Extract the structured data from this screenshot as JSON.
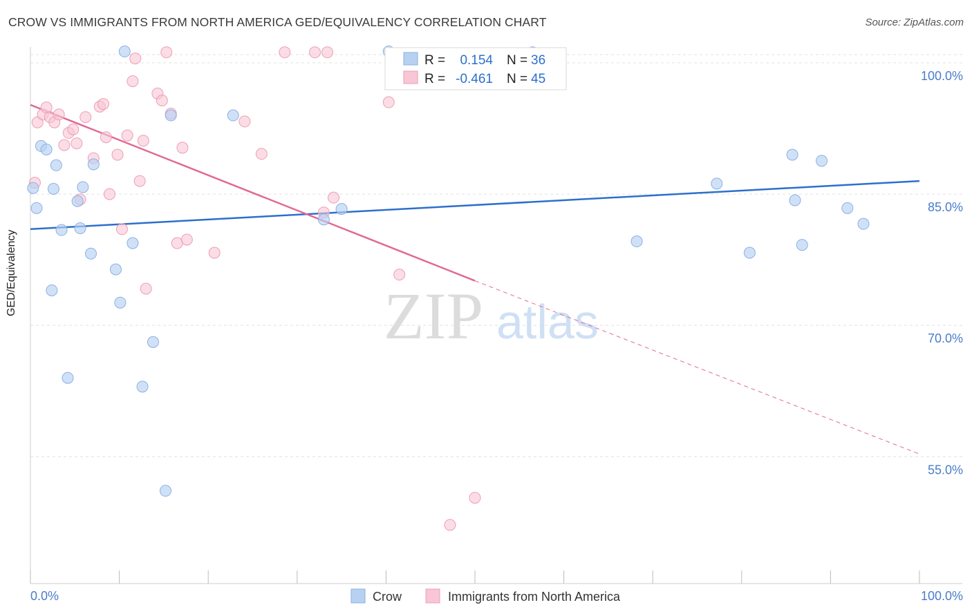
{
  "title": "CROW VS IMMIGRANTS FROM NORTH AMERICA GED/EQUIVALENCY CORRELATION CHART",
  "source": "Source: ZipAtlas.com",
  "watermark": {
    "zip": "ZIP",
    "atlas": "atlas"
  },
  "legend": {
    "r_label": "R =",
    "n_label": "N =",
    "crow": {
      "r": "0.154",
      "n": "36"
    },
    "imm": {
      "r": "-0.461",
      "n": "45"
    }
  },
  "colors": {
    "crow_fill": "#b7d1f2",
    "crow_stroke": "#8ab0e3",
    "crow_line": "#2c6fcd",
    "imm_fill": "#f8c6d5",
    "imm_stroke": "#ee9db5",
    "imm_line": "#e06a95",
    "tick_text": "#4a7cc9",
    "grid": "#e0e0e0"
  },
  "chart_data": {
    "type": "scatter",
    "title": "CROW VS IMMIGRANTS FROM NORTH AMERICA GED/EQUIVALENCY CORRELATION CHART",
    "xlabel": "",
    "ylabel": "GED/Equivalency",
    "xlim": [
      0,
      100
    ],
    "ylim": [
      40.5,
      101.5
    ],
    "x_tick_labels": [
      "0.0%",
      "100.0%"
    ],
    "y_ticks": [
      55,
      70,
      85,
      100
    ],
    "y_tick_labels": [
      "55.0%",
      "70.0%",
      "85.0%",
      "100.0%"
    ],
    "series": [
      {
        "name": "Crow",
        "r": 0.154,
        "n": 36,
        "trend": {
          "x0": 0,
          "y0": 81.0,
          "x1": 100,
          "y1": 86.5
        },
        "points": [
          [
            0.3,
            85.7
          ],
          [
            0.7,
            83.4
          ],
          [
            1.2,
            90.5
          ],
          [
            1.8,
            90.1
          ],
          [
            2.4,
            74.0
          ],
          [
            2.6,
            85.6
          ],
          [
            2.9,
            88.3
          ],
          [
            3.5,
            80.9
          ],
          [
            4.2,
            64.0
          ],
          [
            5.3,
            84.2
          ],
          [
            5.6,
            81.1
          ],
          [
            5.9,
            85.8
          ],
          [
            6.8,
            78.2
          ],
          [
            7.1,
            88.4
          ],
          [
            9.6,
            76.4
          ],
          [
            10.1,
            72.6
          ],
          [
            10.6,
            101.3
          ],
          [
            11.5,
            79.4
          ],
          [
            12.6,
            63.0
          ],
          [
            13.8,
            68.1
          ],
          [
            15.2,
            51.1
          ],
          [
            15.8,
            94.0
          ],
          [
            22.8,
            94.0
          ],
          [
            33.0,
            82.1
          ],
          [
            35.0,
            83.3
          ],
          [
            40.3,
            101.3
          ],
          [
            56.5,
            101.2
          ],
          [
            68.2,
            79.6
          ],
          [
            77.2,
            86.2
          ],
          [
            80.9,
            78.3
          ],
          [
            85.7,
            89.5
          ],
          [
            86.0,
            84.3
          ],
          [
            86.8,
            79.2
          ],
          [
            89.0,
            88.8
          ],
          [
            91.9,
            83.4
          ],
          [
            93.7,
            81.6
          ]
        ]
      },
      {
        "name": "Immigrants from North America",
        "r": -0.461,
        "n": 45,
        "trend": {
          "x0": 0,
          "y0": 95.2,
          "x1": 50,
          "y1": 75.1,
          "dash_to_x": 100,
          "dash_to_y": 55.3
        },
        "points": [
          [
            0.5,
            86.3
          ],
          [
            0.8,
            93.2
          ],
          [
            1.4,
            94.1
          ],
          [
            1.8,
            94.9
          ],
          [
            2.2,
            93.8
          ],
          [
            2.7,
            93.2
          ],
          [
            3.2,
            94.1
          ],
          [
            3.8,
            90.6
          ],
          [
            4.3,
            92.0
          ],
          [
            4.8,
            92.4
          ],
          [
            5.2,
            90.8
          ],
          [
            5.6,
            84.4
          ],
          [
            6.2,
            93.8
          ],
          [
            7.1,
            89.1
          ],
          [
            7.8,
            95.0
          ],
          [
            8.2,
            95.3
          ],
          [
            8.5,
            91.5
          ],
          [
            8.9,
            85.0
          ],
          [
            9.8,
            89.5
          ],
          [
            10.3,
            81.0
          ],
          [
            10.9,
            91.7
          ],
          [
            11.5,
            97.9
          ],
          [
            11.8,
            100.5
          ],
          [
            12.3,
            86.5
          ],
          [
            12.7,
            91.1
          ],
          [
            13.0,
            74.2
          ],
          [
            14.3,
            96.5
          ],
          [
            14.8,
            95.7
          ],
          [
            15.3,
            101.2
          ],
          [
            15.8,
            94.2
          ],
          [
            16.5,
            79.4
          ],
          [
            17.1,
            90.3
          ],
          [
            17.6,
            79.8
          ],
          [
            20.7,
            78.3
          ],
          [
            24.1,
            93.3
          ],
          [
            26.0,
            89.6
          ],
          [
            28.6,
            101.2
          ],
          [
            32.0,
            101.2
          ],
          [
            33.4,
            101.2
          ],
          [
            33.0,
            82.9
          ],
          [
            34.1,
            84.6
          ],
          [
            40.3,
            95.5
          ],
          [
            41.5,
            75.8
          ],
          [
            47.2,
            47.2
          ],
          [
            50.0,
            50.3
          ]
        ]
      }
    ]
  },
  "bottom_legend": {
    "crow": "Crow",
    "imm": "Immigrants from North America"
  }
}
